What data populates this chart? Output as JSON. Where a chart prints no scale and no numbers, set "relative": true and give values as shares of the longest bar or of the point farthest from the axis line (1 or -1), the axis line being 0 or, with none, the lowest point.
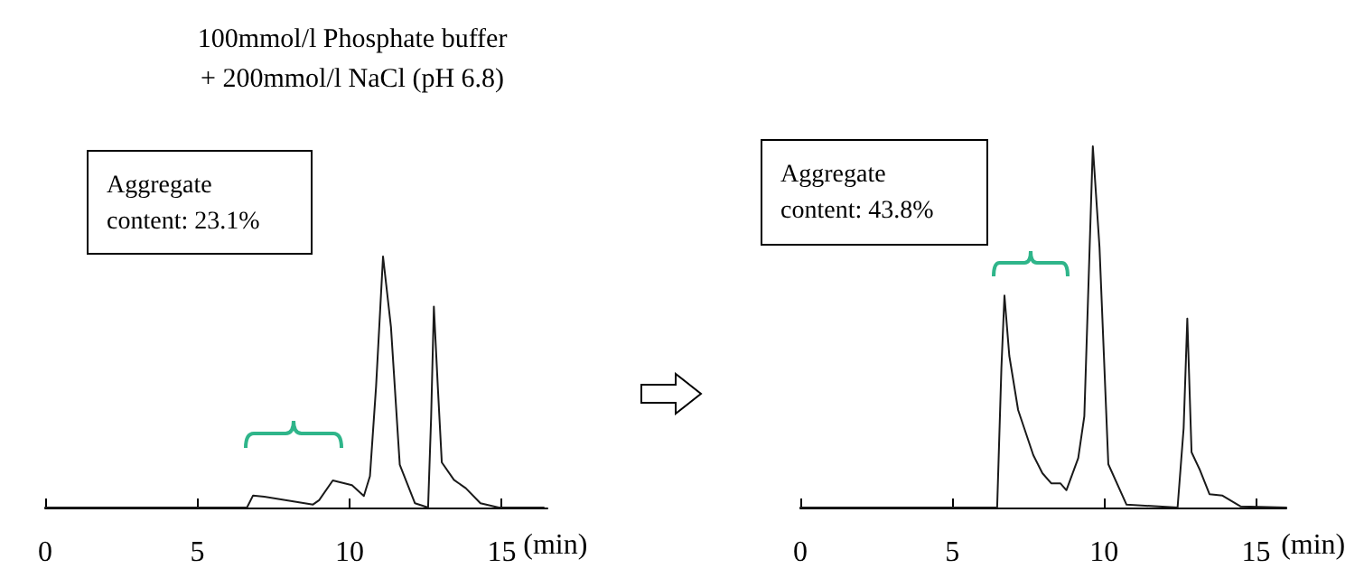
{
  "chart_data": [
    {
      "type": "line",
      "title": "100mmol/l Phosphate buffer\n+ 200mmol/l NaCl (pH 6.8)",
      "xlabel": "(min)",
      "relative": true,
      "xlim": [
        0,
        16.5
      ],
      "xticks": [
        0,
        5,
        10,
        15
      ],
      "tick_labels": "x",
      "grid": false,
      "marker": "none",
      "line_style": "solid",
      "annotations": [
        "Aggregate\ncontent: 23.1%"
      ],
      "series": [
        {
          "color": "#1a1a1a",
          "x": [
            0,
            6.63,
            6.83,
            7.2,
            8.8,
            9.0,
            9.45,
            9.78,
            10.08,
            10.47,
            10.67,
            10.87,
            11.1,
            11.36,
            11.65,
            12.15,
            12.58,
            12.68,
            12.77,
            12.9,
            13.03,
            13.43,
            13.82,
            14.3,
            14.9,
            16.38
          ],
          "values": [
            0,
            0,
            0.048,
            0.043,
            0.012,
            0.029,
            0.108,
            0.098,
            0.089,
            0.046,
            0.125,
            0.48,
            1.0,
            0.72,
            0.17,
            0.017,
            0,
            0.36,
            0.8,
            0.48,
            0.18,
            0.11,
            0.077,
            0.017,
            0,
            0
          ]
        }
      ]
    },
    {
      "type": "line",
      "xlabel": "(min)",
      "relative": true,
      "xlim": [
        0,
        16
      ],
      "xticks": [
        0,
        5,
        10,
        15
      ],
      "tick_labels": "x",
      "grid": false,
      "marker": "none",
      "line_style": "solid",
      "annotations": [
        "Aggregate\ncontent: 43.8%"
      ],
      "series": [
        {
          "color": "#1a1a1a",
          "x": [
            0,
            6.48,
            6.62,
            6.72,
            6.88,
            7.17,
            7.67,
            7.97,
            8.26,
            8.56,
            8.76,
            9.15,
            9.35,
            9.63,
            9.85,
            10.14,
            10.74,
            12.42,
            12.62,
            12.74,
            12.88,
            13.16,
            13.47,
            13.9,
            14.5,
            16
          ],
          "values": [
            0,
            0,
            0.387,
            0.587,
            0.42,
            0.27,
            0.145,
            0.095,
            0.067,
            0.067,
            0.048,
            0.137,
            0.253,
            1.0,
            0.72,
            0.12,
            0.008,
            0,
            0.22,
            0.523,
            0.153,
            0.103,
            0.037,
            0.033,
            0.003,
            0
          ]
        }
      ]
    }
  ]
}
